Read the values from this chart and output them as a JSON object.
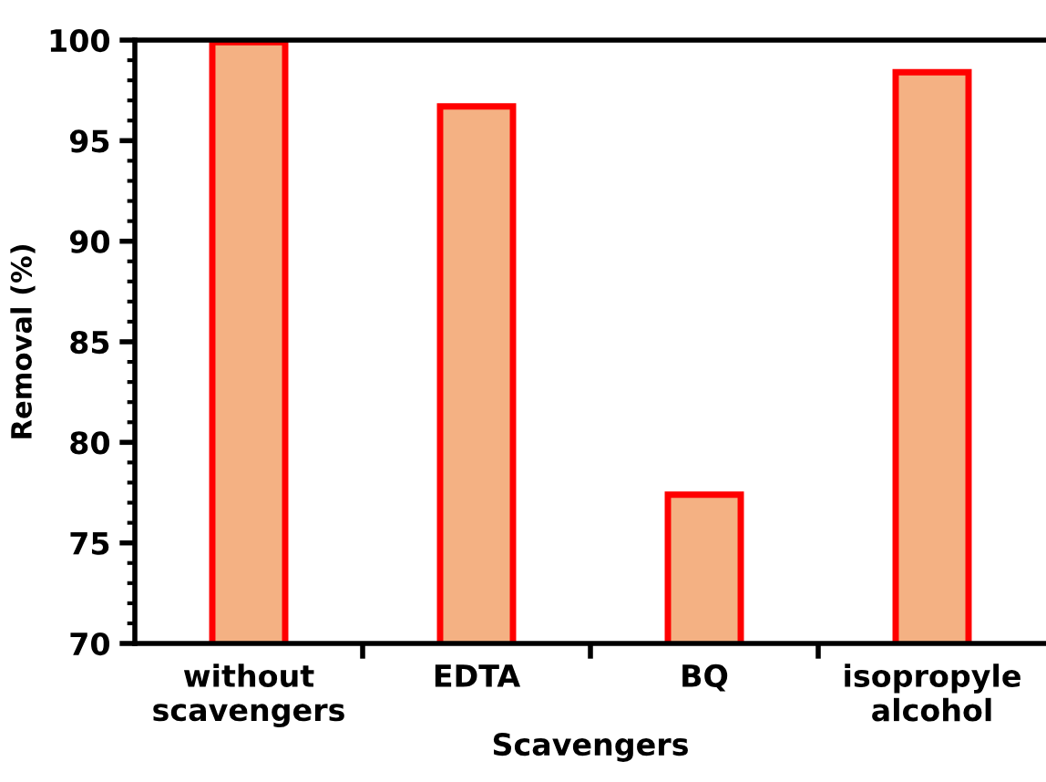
{
  "chart_data": {
    "type": "bar",
    "xlabel": "Scavengers",
    "ylabel": "Removal (%)",
    "categories": [
      "without\nscavengers",
      "EDTA",
      "BQ",
      "isopropyle\nalcohol"
    ],
    "values": [
      99.9,
      96.7,
      77.4,
      98.4
    ],
    "color": "#f4b183",
    "ylim": [
      70,
      100
    ],
    "yticks": [
      70,
      75,
      80,
      85,
      90,
      95,
      100
    ],
    "grid": false,
    "legend": false
  }
}
